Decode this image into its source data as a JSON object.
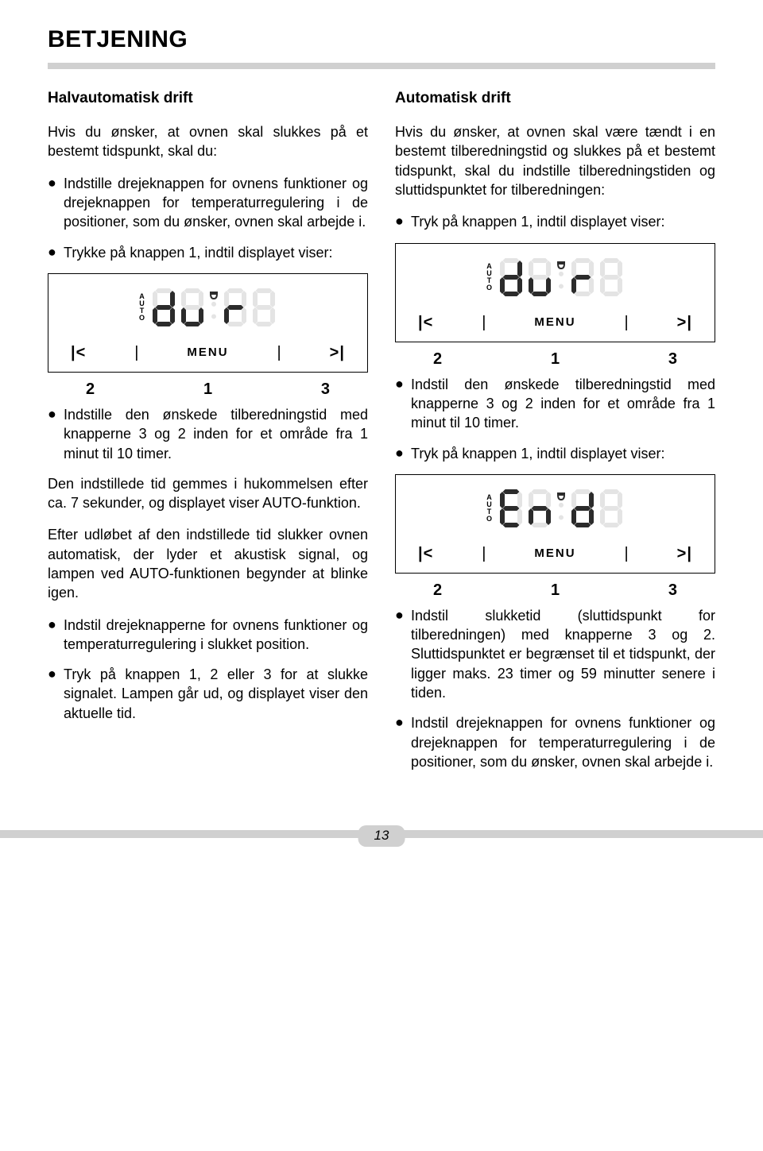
{
  "title": "BETJENING",
  "page_number": "13",
  "colors": {
    "text": "#000000",
    "background": "#ffffff",
    "rule": "#d0d0d0",
    "seg_on": "#2b2b2b",
    "seg_off": "#e4e4e4"
  },
  "left": {
    "subhead": "Halvautomatisk drift",
    "intro": "Hvis du ønsker, at ovnen skal slukkes på et bestemt tidspunkt, skal du:",
    "bul1": "Indstille drejeknappen for ovnens funktioner og drejeknappen for temperaturregulering i de positioner, som du ønsker, ovnen skal arbejde i.",
    "bul2": "Trykke på knappen 1, indtil displayet viser:",
    "display1": {
      "auto": "AUTO",
      "text": "dur",
      "btn_left": "|<",
      "menu": "MENU",
      "btn_right": ">|",
      "nums": [
        "2",
        "1",
        "3"
      ]
    },
    "bul3": "Indstille den ønskede tilberedningstid med knapperne 3 og 2 inden for et område fra 1 minut til 10 timer.",
    "para1": "Den indstillede tid gemmes i hukommelsen efter ca. 7 sekunder, og displayet viser AUTO-funktion.",
    "para2": "Efter udløbet af den indstillede tid slukker ovnen automatisk, der lyder et akustisk signal, og lampen ved AUTO-funktionen begynder at blinke igen.",
    "bul4": "Indstil drejeknapperne for ovnens funktioner og temperaturregulering i slukket position.",
    "bul5": "Tryk på knappen 1, 2 eller 3 for at slukke signalet. Lampen går ud, og displayet viser den aktuelle tid."
  },
  "right": {
    "subhead": "Automatisk drift",
    "intro": "Hvis du ønsker, at ovnen skal være tændt i en bestemt tilberedningstid og slukkes på et bestemt tidspunkt, skal du indstille tilberedningstiden og sluttidspunktet for tilberedningen:",
    "bul1": "Tryk på knappen 1, indtil displayet viser:",
    "display1": {
      "auto": "AUTO",
      "text": "dur",
      "btn_left": "|<",
      "menu": "MENU",
      "btn_right": ">|",
      "nums": [
        "2",
        "1",
        "3"
      ]
    },
    "bul2": "Indstil den ønskede tilberedningstid med knapperne 3 og 2 inden for et område fra 1 minut til 10 timer.",
    "bul3": "Tryk på knappen 1, indtil displayet viser:",
    "display2": {
      "auto": "AUTO",
      "text": "End",
      "btn_left": "|<",
      "menu": "MENU",
      "btn_right": ">|",
      "nums": [
        "2",
        "1",
        "3"
      ]
    },
    "bul4": "Indstil slukketid (sluttidspunkt for tilberedningen) med knapperne 3 og 2. Sluttidspunktet er begrænset til et tidspunkt, der ligger maks. 23 timer og 59 minutter senere i tiden.",
    "bul5": "Indstil drejeknappen for ovnens funktioner og drejeknappen for temperaturregulering i de positioner, som du ønsker, ovnen skal arbejde i."
  },
  "seven_seg": {
    "width": 32,
    "height": 52,
    "stroke": 6,
    "on": "#2b2b2b",
    "off": "#e4e4e4",
    "chars": {
      "d": {
        "a": 0,
        "b": 1,
        "c": 1,
        "d": 1,
        "e": 1,
        "f": 0,
        "g": 1
      },
      "u": {
        "a": 0,
        "b": 0,
        "c": 1,
        "d": 1,
        "e": 1,
        "f": 0,
        "g": 0
      },
      "r": {
        "a": 0,
        "b": 0,
        "c": 0,
        "d": 0,
        "e": 1,
        "f": 0,
        "g": 1
      },
      "E": {
        "a": 1,
        "b": 0,
        "c": 0,
        "d": 1,
        "e": 1,
        "f": 1,
        "g": 1
      },
      "n": {
        "a": 0,
        "b": 0,
        "c": 1,
        "d": 0,
        "e": 1,
        "f": 0,
        "g": 1
      },
      "off": {
        "a": 0,
        "b": 0,
        "c": 0,
        "d": 0,
        "e": 0,
        "f": 0,
        "g": 0
      }
    },
    "pot_icon": true,
    "colon": true
  }
}
